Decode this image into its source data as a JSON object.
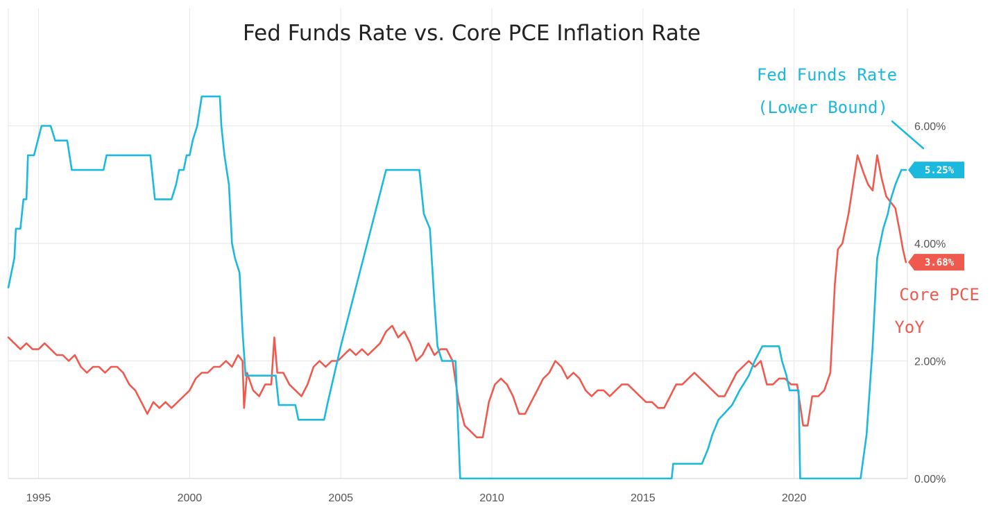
{
  "chart_data": {
    "type": "line",
    "title": "Fed Funds Rate vs. Core PCE Inflation Rate",
    "xlabel": "",
    "ylabel": "",
    "xlim": [
      1994.0,
      2023.75
    ],
    "ylim": [
      0,
      0.08
    ],
    "x_ticks": [
      {
        "value": 1995,
        "label": "1995"
      },
      {
        "value": 2000,
        "label": "2000"
      },
      {
        "value": 2005,
        "label": "2005"
      },
      {
        "value": 2010,
        "label": "2010"
      },
      {
        "value": 2015,
        "label": "2015"
      },
      {
        "value": 2020,
        "label": "2020"
      }
    ],
    "y_ticks": [
      {
        "value": 0.0,
        "label": "0.00%"
      },
      {
        "value": 0.02,
        "label": "2.00%"
      },
      {
        "value": 0.04,
        "label": "4.00%"
      },
      {
        "value": 0.06,
        "label": "6.00%"
      }
    ],
    "grid": true,
    "series": [
      {
        "name": "Fed Funds Rate (Lower Bound)",
        "label_lines": [
          "Fed Funds Rate",
          "(Lower Bound)"
        ],
        "color": "#1ab9dd",
        "last_value_label": "5.25%",
        "points": [
          [
            1994.0,
            0.0325
          ],
          [
            1994.1,
            0.035
          ],
          [
            1994.2,
            0.0375
          ],
          [
            1994.25,
            0.0425
          ],
          [
            1994.4,
            0.0425
          ],
          [
            1994.5,
            0.0475
          ],
          [
            1994.6,
            0.0475
          ],
          [
            1994.65,
            0.055
          ],
          [
            1994.85,
            0.055
          ],
          [
            1995.1,
            0.06
          ],
          [
            1995.4,
            0.06
          ],
          [
            1995.55,
            0.0575
          ],
          [
            1995.95,
            0.0575
          ],
          [
            1996.1,
            0.0525
          ],
          [
            1997.15,
            0.0525
          ],
          [
            1997.25,
            0.055
          ],
          [
            1998.7,
            0.055
          ],
          [
            1998.85,
            0.0475
          ],
          [
            1999.4,
            0.0475
          ],
          [
            1999.55,
            0.05
          ],
          [
            1999.65,
            0.0525
          ],
          [
            1999.8,
            0.0525
          ],
          [
            1999.9,
            0.055
          ],
          [
            2000.0,
            0.055
          ],
          [
            2000.1,
            0.0575
          ],
          [
            2000.25,
            0.06
          ],
          [
            2000.4,
            0.065
          ],
          [
            2000.55,
            0.065
          ],
          [
            2001.0,
            0.065
          ],
          [
            2001.05,
            0.06
          ],
          [
            2001.15,
            0.055
          ],
          [
            2001.3,
            0.05
          ],
          [
            2001.4,
            0.04
          ],
          [
            2001.5,
            0.0375
          ],
          [
            2001.65,
            0.035
          ],
          [
            2001.75,
            0.025
          ],
          [
            2001.85,
            0.0175
          ],
          [
            2002.85,
            0.0175
          ],
          [
            2002.95,
            0.0125
          ],
          [
            2003.5,
            0.0125
          ],
          [
            2003.6,
            0.01
          ],
          [
            2004.45,
            0.01
          ],
          [
            2004.55,
            0.0125
          ],
          [
            2005.0,
            0.0225
          ],
          [
            2006.0,
            0.0425
          ],
          [
            2006.5,
            0.0525
          ],
          [
            2007.6,
            0.0525
          ],
          [
            2007.75,
            0.045
          ],
          [
            2007.95,
            0.0425
          ],
          [
            2008.1,
            0.03
          ],
          [
            2008.2,
            0.0225
          ],
          [
            2008.35,
            0.02
          ],
          [
            2008.8,
            0.02
          ],
          [
            2008.95,
            0.0
          ],
          [
            2015.95,
            0.0
          ],
          [
            2016.0,
            0.0025
          ],
          [
            2016.95,
            0.0025
          ],
          [
            2017.15,
            0.005
          ],
          [
            2017.3,
            0.0075
          ],
          [
            2017.5,
            0.01
          ],
          [
            2017.95,
            0.0125
          ],
          [
            2018.2,
            0.015
          ],
          [
            2018.5,
            0.0175
          ],
          [
            2018.7,
            0.02
          ],
          [
            2018.95,
            0.0225
          ],
          [
            2019.5,
            0.0225
          ],
          [
            2019.6,
            0.02
          ],
          [
            2019.75,
            0.0175
          ],
          [
            2019.85,
            0.015
          ],
          [
            2020.15,
            0.015
          ],
          [
            2020.2,
            0.0
          ],
          [
            2022.2,
            0.0
          ],
          [
            2022.4,
            0.0075
          ],
          [
            2022.6,
            0.0225
          ],
          [
            2022.75,
            0.0375
          ],
          [
            2022.95,
            0.0425
          ],
          [
            2023.1,
            0.045
          ],
          [
            2023.2,
            0.0475
          ],
          [
            2023.35,
            0.05
          ],
          [
            2023.55,
            0.0525
          ],
          [
            2023.7,
            0.0525
          ]
        ]
      },
      {
        "name": "Core PCE YoY",
        "label_lines": [
          "Core PCE",
          "YoY"
        ],
        "color": "#f05a4e",
        "last_value_label": "3.68%",
        "points": [
          [
            1994.0,
            0.024
          ],
          [
            1994.2,
            0.023
          ],
          [
            1994.4,
            0.022
          ],
          [
            1994.6,
            0.023
          ],
          [
            1994.8,
            0.022
          ],
          [
            1995.0,
            0.022
          ],
          [
            1995.2,
            0.023
          ],
          [
            1995.4,
            0.022
          ],
          [
            1995.6,
            0.021
          ],
          [
            1995.8,
            0.021
          ],
          [
            1996.0,
            0.02
          ],
          [
            1996.2,
            0.021
          ],
          [
            1996.4,
            0.019
          ],
          [
            1996.6,
            0.018
          ],
          [
            1996.8,
            0.019
          ],
          [
            1997.0,
            0.019
          ],
          [
            1997.2,
            0.018
          ],
          [
            1997.4,
            0.019
          ],
          [
            1997.6,
            0.019
          ],
          [
            1997.8,
            0.018
          ],
          [
            1998.0,
            0.016
          ],
          [
            1998.2,
            0.015
          ],
          [
            1998.4,
            0.013
          ],
          [
            1998.6,
            0.011
          ],
          [
            1998.8,
            0.013
          ],
          [
            1999.0,
            0.012
          ],
          [
            1999.2,
            0.013
          ],
          [
            1999.4,
            0.012
          ],
          [
            1999.6,
            0.013
          ],
          [
            1999.8,
            0.014
          ],
          [
            2000.0,
            0.015
          ],
          [
            2000.2,
            0.017
          ],
          [
            2000.4,
            0.018
          ],
          [
            2000.6,
            0.018
          ],
          [
            2000.8,
            0.019
          ],
          [
            2001.0,
            0.019
          ],
          [
            2001.2,
            0.02
          ],
          [
            2001.4,
            0.019
          ],
          [
            2001.6,
            0.021
          ],
          [
            2001.75,
            0.02
          ],
          [
            2001.8,
            0.012
          ],
          [
            2001.9,
            0.018
          ],
          [
            2002.1,
            0.015
          ],
          [
            2002.3,
            0.014
          ],
          [
            2002.5,
            0.016
          ],
          [
            2002.7,
            0.016
          ],
          [
            2002.8,
            0.024
          ],
          [
            2002.9,
            0.018
          ],
          [
            2003.1,
            0.018
          ],
          [
            2003.3,
            0.016
          ],
          [
            2003.5,
            0.015
          ],
          [
            2003.7,
            0.014
          ],
          [
            2003.9,
            0.016
          ],
          [
            2004.1,
            0.019
          ],
          [
            2004.3,
            0.02
          ],
          [
            2004.5,
            0.019
          ],
          [
            2004.7,
            0.02
          ],
          [
            2004.9,
            0.02
          ],
          [
            2005.1,
            0.021
          ],
          [
            2005.3,
            0.022
          ],
          [
            2005.5,
            0.021
          ],
          [
            2005.7,
            0.022
          ],
          [
            2005.9,
            0.021
          ],
          [
            2006.1,
            0.022
          ],
          [
            2006.3,
            0.023
          ],
          [
            2006.5,
            0.025
          ],
          [
            2006.7,
            0.026
          ],
          [
            2006.9,
            0.024
          ],
          [
            2007.1,
            0.025
          ],
          [
            2007.3,
            0.023
          ],
          [
            2007.5,
            0.02
          ],
          [
            2007.7,
            0.021
          ],
          [
            2007.9,
            0.023
          ],
          [
            2008.1,
            0.021
          ],
          [
            2008.3,
            0.022
          ],
          [
            2008.5,
            0.022
          ],
          [
            2008.7,
            0.02
          ],
          [
            2008.9,
            0.013
          ],
          [
            2009.1,
            0.009
          ],
          [
            2009.3,
            0.008
          ],
          [
            2009.5,
            0.007
          ],
          [
            2009.7,
            0.007
          ],
          [
            2009.9,
            0.013
          ],
          [
            2010.1,
            0.016
          ],
          [
            2010.3,
            0.017
          ],
          [
            2010.5,
            0.016
          ],
          [
            2010.7,
            0.014
          ],
          [
            2010.9,
            0.011
          ],
          [
            2011.1,
            0.011
          ],
          [
            2011.3,
            0.013
          ],
          [
            2011.5,
            0.015
          ],
          [
            2011.7,
            0.017
          ],
          [
            2011.9,
            0.018
          ],
          [
            2012.1,
            0.02
          ],
          [
            2012.3,
            0.019
          ],
          [
            2012.5,
            0.017
          ],
          [
            2012.7,
            0.018
          ],
          [
            2012.9,
            0.017
          ],
          [
            2013.1,
            0.015
          ],
          [
            2013.3,
            0.014
          ],
          [
            2013.5,
            0.015
          ],
          [
            2013.7,
            0.015
          ],
          [
            2013.9,
            0.014
          ],
          [
            2014.1,
            0.015
          ],
          [
            2014.3,
            0.016
          ],
          [
            2014.5,
            0.016
          ],
          [
            2014.7,
            0.015
          ],
          [
            2014.9,
            0.014
          ],
          [
            2015.1,
            0.013
          ],
          [
            2015.3,
            0.013
          ],
          [
            2015.5,
            0.012
          ],
          [
            2015.7,
            0.012
          ],
          [
            2015.9,
            0.014
          ],
          [
            2016.1,
            0.016
          ],
          [
            2016.3,
            0.016
          ],
          [
            2016.5,
            0.017
          ],
          [
            2016.7,
            0.018
          ],
          [
            2016.9,
            0.017
          ],
          [
            2017.1,
            0.016
          ],
          [
            2017.3,
            0.015
          ],
          [
            2017.5,
            0.014
          ],
          [
            2017.7,
            0.014
          ],
          [
            2017.9,
            0.016
          ],
          [
            2018.1,
            0.018
          ],
          [
            2018.3,
            0.019
          ],
          [
            2018.5,
            0.02
          ],
          [
            2018.7,
            0.019
          ],
          [
            2018.9,
            0.02
          ],
          [
            2019.1,
            0.016
          ],
          [
            2019.3,
            0.016
          ],
          [
            2019.5,
            0.017
          ],
          [
            2019.7,
            0.017
          ],
          [
            2019.9,
            0.016
          ],
          [
            2020.1,
            0.016
          ],
          [
            2020.3,
            0.009
          ],
          [
            2020.45,
            0.009
          ],
          [
            2020.6,
            0.014
          ],
          [
            2020.8,
            0.014
          ],
          [
            2021.0,
            0.015
          ],
          [
            2021.2,
            0.018
          ],
          [
            2021.35,
            0.033
          ],
          [
            2021.45,
            0.039
          ],
          [
            2021.6,
            0.04
          ],
          [
            2021.8,
            0.045
          ],
          [
            2021.95,
            0.05
          ],
          [
            2022.1,
            0.055
          ],
          [
            2022.3,
            0.052
          ],
          [
            2022.45,
            0.05
          ],
          [
            2022.6,
            0.049
          ],
          [
            2022.75,
            0.055
          ],
          [
            2022.9,
            0.051
          ],
          [
            2023.05,
            0.048
          ],
          [
            2023.2,
            0.047
          ],
          [
            2023.35,
            0.046
          ],
          [
            2023.5,
            0.042
          ],
          [
            2023.6,
            0.039
          ],
          [
            2023.7,
            0.0368
          ]
        ]
      }
    ]
  }
}
